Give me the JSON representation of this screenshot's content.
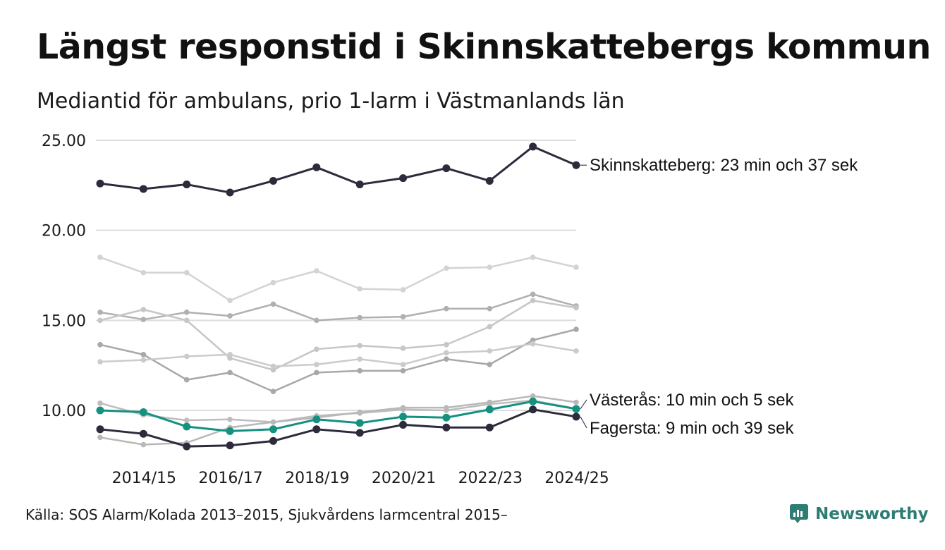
{
  "header": {
    "title": "Längst responstid i Skinnskattebergs kommun",
    "subtitle": "Mediantid för ambulans, prio 1-larm i Västmanlands län"
  },
  "footer": {
    "source": "Källa: SOS Alarm/Kolada 2013–2015, Sjukvårdens larmcentral 2015–",
    "brand": "Newsworthy",
    "brand_icon": "newsworthy-logo-icon"
  },
  "colors": {
    "highlight_dark": "#2b2b3b",
    "highlight_teal": "#14917f",
    "context_lines": [
      "#d3d3d3",
      "#b0b0b0",
      "#c6c6c6",
      "#a8a8a8",
      "#cbcbcb",
      "#bdbdbd",
      "#b8b8b8"
    ],
    "grid": "#dddddd"
  },
  "chart_data": {
    "type": "line",
    "title": "Längst responstid i Skinnskattebergs kommun",
    "subtitle": "Mediantid för ambulans, prio 1-larm i Västmanlands län",
    "xlabel": "",
    "ylabel": "",
    "ylim": [
      7.5,
      25.5
    ],
    "yticks": [
      10,
      15,
      20,
      25
    ],
    "ytick_labels": [
      "10.00",
      "15.00",
      "20.00",
      "25.00"
    ],
    "grid": true,
    "x": [
      "2013/14",
      "2014/15",
      "2015/16",
      "2016/17",
      "2017/18",
      "2018/19",
      "2019/20",
      "2020/21",
      "2021/22",
      "2022/23",
      "2023/24",
      "2024/25"
    ],
    "xtick_labels": [
      "2014/15",
      "2016/17",
      "2018/19",
      "2020/21",
      "2022/23",
      "2024/25"
    ],
    "xtick_indices": [
      1,
      3,
      5,
      7,
      9,
      11
    ],
    "highlighted": [
      {
        "name": "Skinnskatteberg",
        "label": "Skinnskatteberg: 23 min och 37 sek",
        "color": "#2b2b3b",
        "values": [
          22.6,
          22.3,
          22.55,
          22.1,
          22.75,
          23.5,
          22.55,
          22.9,
          23.45,
          22.75,
          24.65,
          23.62
        ]
      },
      {
        "name": "Västerås",
        "label": "Västerås: 10 min och 5 sek",
        "color": "#14917f",
        "values": [
          10.0,
          9.9,
          9.1,
          8.85,
          8.95,
          9.5,
          9.3,
          9.65,
          9.6,
          10.05,
          10.5,
          10.08
        ]
      },
      {
        "name": "Fagersta",
        "label": "Fagersta: 9 min och 39 sek",
        "color": "#2b2b3b",
        "values": [
          8.95,
          8.7,
          8.0,
          8.05,
          8.3,
          8.95,
          8.75,
          9.2,
          9.05,
          9.05,
          10.05,
          9.65
        ]
      }
    ],
    "context_series": [
      {
        "values": [
          18.5,
          17.65,
          17.65,
          16.1,
          17.1,
          17.75,
          16.75,
          16.7,
          17.9,
          17.95,
          18.5,
          17.95
        ]
      },
      {
        "values": [
          15.45,
          15.05,
          15.45,
          15.25,
          15.9,
          15.0,
          15.15,
          15.2,
          15.65,
          15.65,
          16.45,
          15.8
        ]
      },
      {
        "values": [
          15.0,
          15.6,
          15.0,
          12.9,
          12.25,
          13.4,
          13.6,
          13.45,
          13.65,
          14.65,
          16.1,
          15.7
        ]
      },
      {
        "values": [
          13.65,
          13.1,
          11.7,
          12.1,
          11.05,
          12.1,
          12.2,
          12.2,
          12.85,
          12.55,
          13.9,
          14.5
        ]
      },
      {
        "values": [
          12.7,
          12.8,
          13.0,
          13.1,
          12.45,
          12.55,
          12.85,
          12.55,
          13.2,
          13.3,
          13.7,
          13.3
        ]
      },
      {
        "values": [
          10.4,
          9.75,
          9.45,
          9.5,
          9.35,
          9.7,
          9.85,
          10.05,
          10.0,
          10.35,
          10.55,
          10.1
        ]
      },
      {
        "values": [
          8.5,
          8.1,
          8.2,
          9.05,
          9.35,
          9.6,
          9.9,
          10.15,
          10.15,
          10.45,
          10.8,
          10.45
        ]
      }
    ]
  }
}
